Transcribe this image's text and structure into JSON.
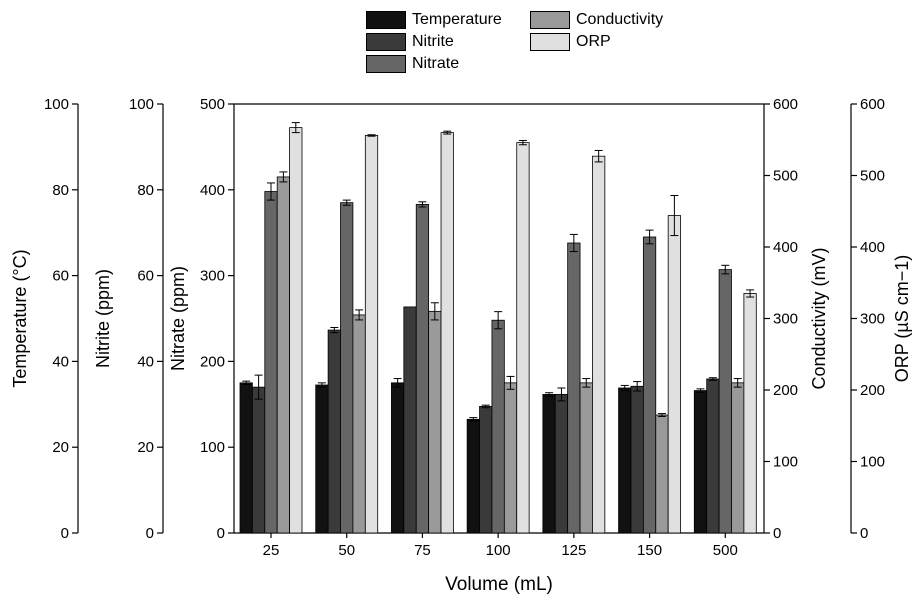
{
  "chart_data": {
    "type": "bar",
    "xlabel": "Volume (mL)",
    "categories": [
      "25",
      "50",
      "75",
      "100",
      "125",
      "150",
      "500"
    ],
    "series": [
      {
        "name": "Temperature",
        "axis": "temperature",
        "color": "#111111",
        "values": [
          35,
          34.5,
          35,
          26.5,
          32.3,
          33.8,
          33.2
        ],
        "errors": [
          0.4,
          0.5,
          1.0,
          0.4,
          0.4,
          0.6,
          0.4
        ]
      },
      {
        "name": "Nitrite",
        "axis": "nitrite",
        "color": "#3a3a3a",
        "values": [
          34,
          47.3,
          52.7,
          29.5,
          32.3,
          34.2,
          35.9
        ],
        "errors": [
          2.8,
          0.6,
          0.0,
          0.3,
          1.5,
          1.1,
          0.3
        ]
      },
      {
        "name": "Nitrate",
        "axis": "nitrate",
        "color": "#666666",
        "values": [
          398,
          385,
          383,
          248,
          338,
          345,
          307
        ],
        "errors": [
          10,
          3,
          3,
          10,
          10,
          8,
          5
        ]
      },
      {
        "name": "Conductivity",
        "axis": "conductivity",
        "color": "#9a9a9a",
        "values": [
          498,
          305,
          310,
          210,
          210,
          165,
          210
        ],
        "errors": [
          7,
          7,
          12,
          9,
          6,
          2,
          6
        ]
      },
      {
        "name": "ORP",
        "axis": "orp",
        "color": "#e0e0e0",
        "values": [
          567,
          556,
          560,
          546,
          527,
          444,
          335
        ],
        "errors": [
          7,
          1,
          2,
          3,
          8,
          28,
          5
        ]
      }
    ],
    "axes": {
      "temperature": {
        "label": "Temperature (°C)",
        "min": 0,
        "max": 100,
        "ticks": [
          0,
          20,
          40,
          60,
          80,
          100
        ],
        "side": "left"
      },
      "nitrite": {
        "label": "Nitrite (ppm)",
        "min": 0,
        "max": 100,
        "ticks": [
          0,
          20,
          40,
          60,
          80,
          100
        ],
        "side": "left"
      },
      "nitrate": {
        "label": "Nitrate (ppm)",
        "min": 0,
        "max": 500,
        "ticks": [
          0,
          100,
          200,
          300,
          400,
          500
        ],
        "side": "left"
      },
      "conductivity": {
        "label": "Conductivity (mV)",
        "min": 0,
        "max": 600,
        "ticks": [
          0,
          100,
          200,
          300,
          400,
          500,
          600
        ],
        "side": "right"
      },
      "orp": {
        "label": "ORP (µS cm−1)",
        "min": 0,
        "max": 600,
        "ticks": [
          0,
          100,
          200,
          300,
          400,
          500,
          600
        ],
        "side": "right"
      }
    },
    "legend_position": "top"
  }
}
